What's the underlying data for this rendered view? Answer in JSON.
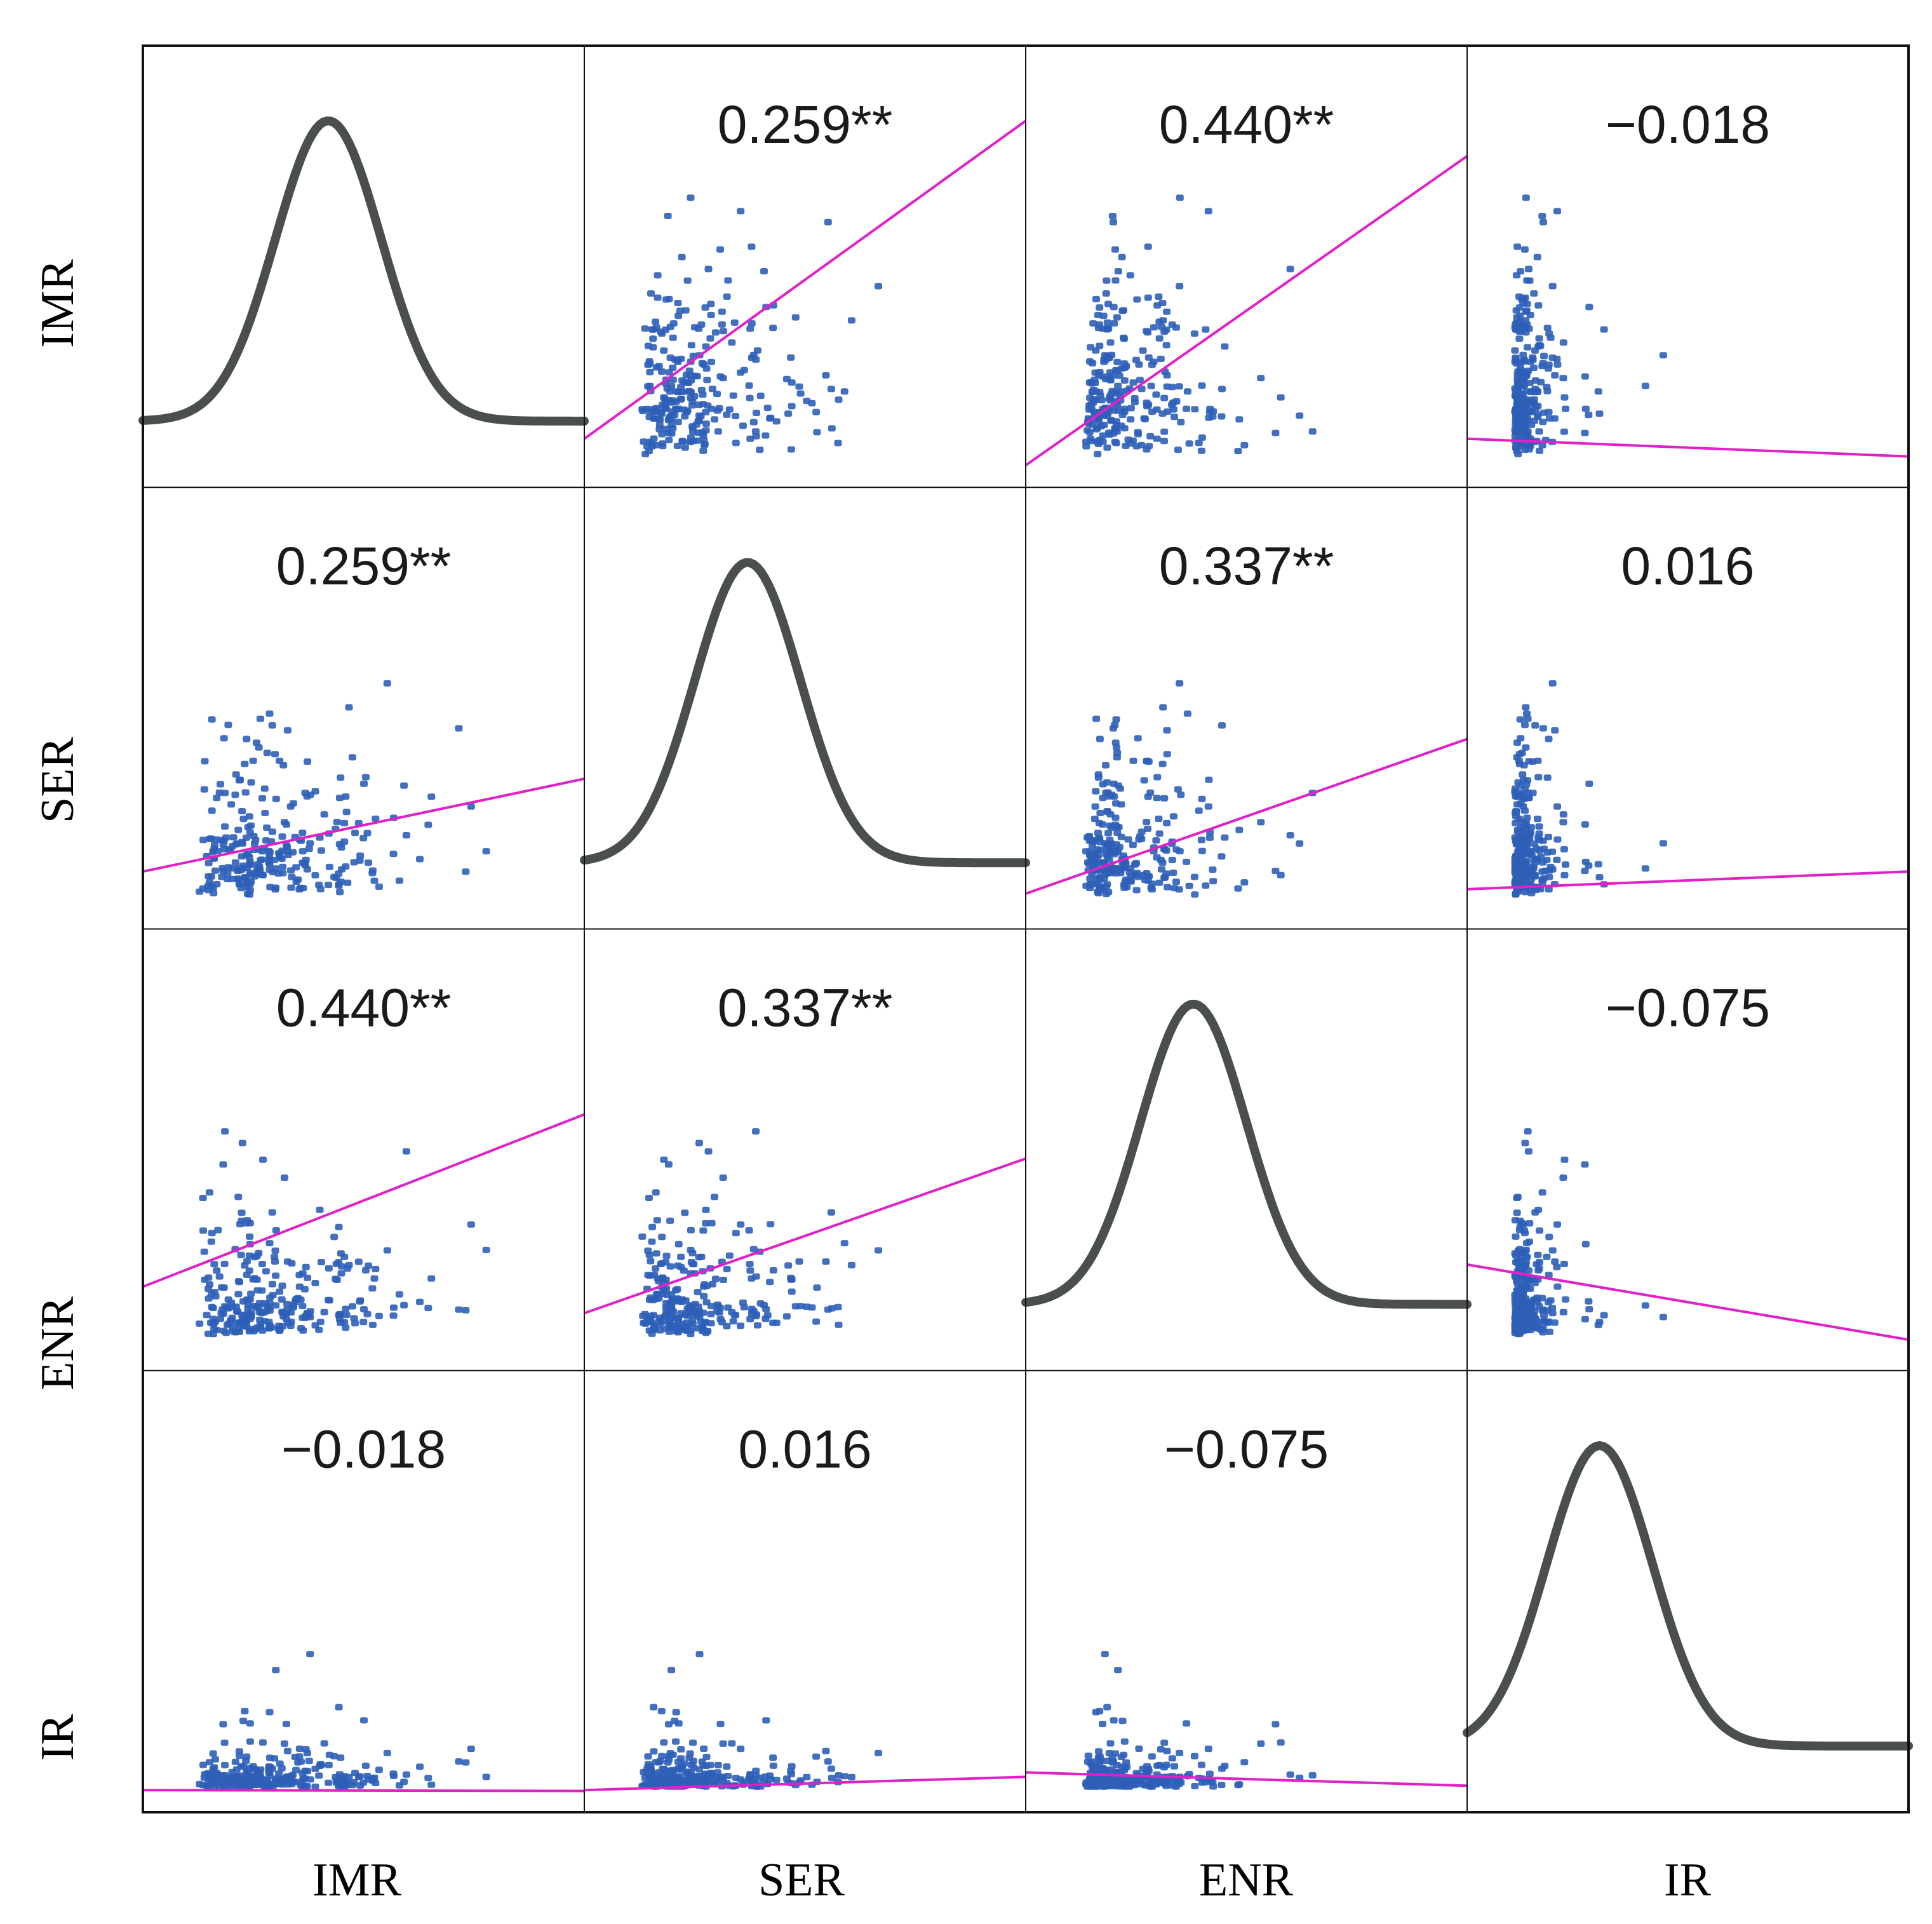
{
  "chart_data": {
    "type": "scatter-matrix",
    "variables": [
      "IMR",
      "SER",
      "ENR",
      "IR"
    ],
    "row_labels": [
      "IMR",
      "SER",
      "ENR",
      "IR"
    ],
    "col_labels": [
      "IMR",
      "SER",
      "ENR",
      "IR"
    ],
    "diagonal": "density",
    "correlations": [
      [
        "",
        "0.259**",
        "0.440**",
        "−0.018"
      ],
      [
        "0.259**",
        "",
        "0.337**",
        "0.016"
      ],
      [
        "0.440**",
        "0.337**",
        "",
        "−0.075"
      ],
      [
        "−0.018",
        "0.016",
        "−0.075",
        ""
      ]
    ],
    "density_peak": [
      0.42,
      0.37,
      0.38,
      0.3
    ],
    "fit_lines": [
      [
        null,
        [
          0.08,
          0.8
        ],
        [
          0.02,
          0.72
        ],
        [
          0.08,
          0.04
        ]
      ],
      [
        [
          0.1,
          0.31
        ],
        null,
        [
          0.05,
          0.4
        ],
        [
          0.06,
          0.1
        ]
      ],
      [
        [
          0.16,
          0.55
        ],
        [
          0.1,
          0.45
        ],
        null,
        [
          0.21,
          0.04
        ]
      ],
      [
        [
          0.02,
          0.018
        ],
        [
          0.02,
          0.05
        ],
        [
          0.06,
          0.03
        ],
        null
      ]
    ],
    "colors": {
      "points": "#2f5fb8",
      "fit_line": "#e020c8",
      "density": "#4a4f4c",
      "border": "#111111"
    }
  }
}
